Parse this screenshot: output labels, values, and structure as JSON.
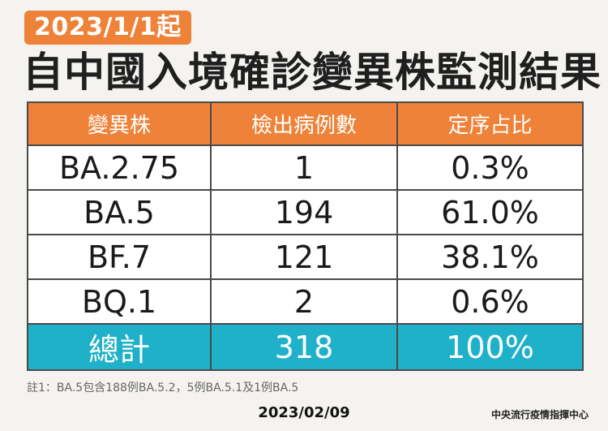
{
  "badge": "2023/1/1起",
  "title": "自中國入境確診變異株監測結果",
  "table": {
    "headers": [
      "變異株",
      "檢出病例數",
      "定序占比"
    ],
    "rows": [
      [
        "BA.2.75",
        "1",
        "0.3%"
      ],
      [
        "BA.5",
        "194",
        "61.0%"
      ],
      [
        "BF.7",
        "121",
        "38.1%"
      ],
      [
        "BQ.1",
        "2",
        "0.6%"
      ]
    ],
    "total": [
      "總計",
      "318",
      "100%"
    ]
  },
  "note": "註1：BA.5包含188例BA.5.2，5例BA.5.1及1例BA.5",
  "date": "2023/02/09",
  "source": "中央流行疫情指揮中心",
  "colors": {
    "header": "#ee8239",
    "total": "#1fb1c9",
    "badge": "#ee8239"
  }
}
